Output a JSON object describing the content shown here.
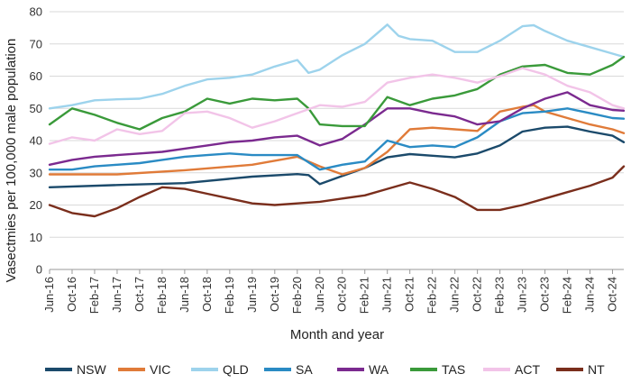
{
  "chart_data": {
    "type": "line",
    "title": "",
    "xlabel": "Month and year",
    "ylabel": "Vasectmies per 100,000 male population",
    "ylim": [
      0,
      80
    ],
    "yticks": [
      0,
      10,
      20,
      30,
      40,
      50,
      60,
      70,
      80
    ],
    "grid": "horizontal",
    "legend_position": "bottom",
    "x_start": "Jun-16",
    "x_end": "Dec-24",
    "x_tick_labels": [
      "Jun-16",
      "Oct-16",
      "Feb-17",
      "Jun-17",
      "Oct-17",
      "Feb-18",
      "Jun-18",
      "Oct-18",
      "Feb-19",
      "Jun-19",
      "Oct-19",
      "Feb-20",
      "Jun-20",
      "Oct-20",
      "Feb-21",
      "Jun-21",
      "Oct-21",
      "Feb-22",
      "Jun-22",
      "Oct-22",
      "Feb-23",
      "Jun-23",
      "Oct-23",
      "Feb-24",
      "Jun-24",
      "Oct-24"
    ],
    "series": [
      {
        "name": "NSW",
        "color": "#1b4a6b",
        "points": [
          [
            "Jun-16",
            25.5
          ],
          [
            "Jun-17",
            26.2
          ],
          [
            "Jun-18",
            26.8
          ],
          [
            "Jun-19",
            28.8
          ],
          [
            "Feb-20",
            29.6
          ],
          [
            "Apr-20",
            29.3
          ],
          [
            "Jun-20",
            26.5
          ],
          [
            "Oct-20",
            29.0
          ],
          [
            "Feb-21",
            31.5
          ],
          [
            "Jun-21",
            34.8
          ],
          [
            "Oct-21",
            35.8
          ],
          [
            "Feb-22",
            35.3
          ],
          [
            "Jun-22",
            34.8
          ],
          [
            "Oct-22",
            36.0
          ],
          [
            "Feb-23",
            38.5
          ],
          [
            "Jun-23",
            42.8
          ],
          [
            "Oct-23",
            44.0
          ],
          [
            "Feb-24",
            44.3
          ],
          [
            "Jun-24",
            42.8
          ],
          [
            "Oct-24",
            41.5
          ],
          [
            "Dec-24",
            39.5
          ]
        ]
      },
      {
        "name": "VIC",
        "color": "#e07b39",
        "points": [
          [
            "Jun-16",
            29.5
          ],
          [
            "Jun-17",
            29.5
          ],
          [
            "Jun-18",
            30.8
          ],
          [
            "Jun-19",
            32.5
          ],
          [
            "Feb-20",
            35.0
          ],
          [
            "Jun-20",
            32.0
          ],
          [
            "Oct-20",
            29.5
          ],
          [
            "Feb-21",
            31.5
          ],
          [
            "Jun-21",
            36.5
          ],
          [
            "Oct-21",
            43.5
          ],
          [
            "Feb-22",
            44.0
          ],
          [
            "Jun-22",
            43.5
          ],
          [
            "Oct-22",
            43.0
          ],
          [
            "Feb-23",
            49.0
          ],
          [
            "Jun-23",
            50.5
          ],
          [
            "Aug-23",
            51.0
          ],
          [
            "Oct-23",
            49.0
          ],
          [
            "Feb-24",
            47.0
          ],
          [
            "Jun-24",
            45.0
          ],
          [
            "Oct-24",
            43.5
          ],
          [
            "Dec-24",
            42.3
          ]
        ]
      },
      {
        "name": "QLD",
        "color": "#9dd3ec",
        "points": [
          [
            "Jun-16",
            50.0
          ],
          [
            "Oct-16",
            51.0
          ],
          [
            "Feb-17",
            52.5
          ],
          [
            "Jun-17",
            52.8
          ],
          [
            "Oct-17",
            53.0
          ],
          [
            "Feb-18",
            54.5
          ],
          [
            "Jun-18",
            57.0
          ],
          [
            "Oct-18",
            59.0
          ],
          [
            "Feb-19",
            59.5
          ],
          [
            "Jun-19",
            60.5
          ],
          [
            "Oct-19",
            63.0
          ],
          [
            "Feb-20",
            65.0
          ],
          [
            "Apr-20",
            61.0
          ],
          [
            "Jun-20",
            62.0
          ],
          [
            "Oct-20",
            66.5
          ],
          [
            "Feb-21",
            70.0
          ],
          [
            "Jun-21",
            76.0
          ],
          [
            "Aug-21",
            72.5
          ],
          [
            "Oct-21",
            71.5
          ],
          [
            "Feb-22",
            71.0
          ],
          [
            "Jun-22",
            67.5
          ],
          [
            "Oct-22",
            67.5
          ],
          [
            "Feb-23",
            71.0
          ],
          [
            "Jun-23",
            75.5
          ],
          [
            "Aug-23",
            75.8
          ],
          [
            "Oct-23",
            74.0
          ],
          [
            "Feb-24",
            71.0
          ],
          [
            "Jun-24",
            69.0
          ],
          [
            "Oct-24",
            67.0
          ],
          [
            "Dec-24",
            66.0
          ]
        ]
      },
      {
        "name": "SA",
        "color": "#2a8bc4",
        "points": [
          [
            "Jun-16",
            31.0
          ],
          [
            "Oct-16",
            31.0
          ],
          [
            "Feb-17",
            32.0
          ],
          [
            "Jun-17",
            32.5
          ],
          [
            "Oct-17",
            33.0
          ],
          [
            "Feb-18",
            34.0
          ],
          [
            "Jun-18",
            35.0
          ],
          [
            "Oct-18",
            35.5
          ],
          [
            "Feb-19",
            36.0
          ],
          [
            "Jun-19",
            35.5
          ],
          [
            "Oct-19",
            35.5
          ],
          [
            "Feb-20",
            35.5
          ],
          [
            "Jun-20",
            31.0
          ],
          [
            "Oct-20",
            32.5
          ],
          [
            "Feb-21",
            33.5
          ],
          [
            "Jun-21",
            40.0
          ],
          [
            "Oct-21",
            38.0
          ],
          [
            "Feb-22",
            38.5
          ],
          [
            "Jun-22",
            38.0
          ],
          [
            "Oct-22",
            41.0
          ],
          [
            "Feb-23",
            46.0
          ],
          [
            "Jun-23",
            48.5
          ],
          [
            "Oct-23",
            49.0
          ],
          [
            "Feb-24",
            50.0
          ],
          [
            "Jun-24",
            48.5
          ],
          [
            "Oct-24",
            47.0
          ],
          [
            "Dec-24",
            46.8
          ]
        ]
      },
      {
        "name": "WA",
        "color": "#7b2a8f",
        "points": [
          [
            "Jun-16",
            32.5
          ],
          [
            "Oct-16",
            34.0
          ],
          [
            "Feb-17",
            35.0
          ],
          [
            "Jun-17",
            35.5
          ],
          [
            "Oct-17",
            36.0
          ],
          [
            "Feb-18",
            36.5
          ],
          [
            "Jun-18",
            37.5
          ],
          [
            "Oct-18",
            38.5
          ],
          [
            "Feb-19",
            39.5
          ],
          [
            "Jun-19",
            40.0
          ],
          [
            "Oct-19",
            41.0
          ],
          [
            "Feb-20",
            41.5
          ],
          [
            "Jun-20",
            38.5
          ],
          [
            "Oct-20",
            40.5
          ],
          [
            "Feb-21",
            45.0
          ],
          [
            "Jun-21",
            50.0
          ],
          [
            "Oct-21",
            50.0
          ],
          [
            "Feb-22",
            48.5
          ],
          [
            "Jun-22",
            47.5
          ],
          [
            "Oct-22",
            45.0
          ],
          [
            "Feb-23",
            46.0
          ],
          [
            "Jun-23",
            50.0
          ],
          [
            "Oct-23",
            53.0
          ],
          [
            "Feb-24",
            55.0
          ],
          [
            "Jun-24",
            51.0
          ],
          [
            "Oct-24",
            49.5
          ],
          [
            "Dec-24",
            49.3
          ]
        ]
      },
      {
        "name": "TAS",
        "color": "#3a9a3a",
        "points": [
          [
            "Jun-16",
            45.0
          ],
          [
            "Oct-16",
            50.0
          ],
          [
            "Feb-17",
            48.0
          ],
          [
            "Jun-17",
            45.5
          ],
          [
            "Oct-17",
            43.5
          ],
          [
            "Feb-18",
            47.0
          ],
          [
            "Jun-18",
            49.0
          ],
          [
            "Oct-18",
            53.0
          ],
          [
            "Feb-19",
            51.5
          ],
          [
            "Jun-19",
            53.0
          ],
          [
            "Oct-19",
            52.5
          ],
          [
            "Feb-20",
            53.0
          ],
          [
            "Apr-20",
            50.0
          ],
          [
            "Jun-20",
            45.0
          ],
          [
            "Oct-20",
            44.5
          ],
          [
            "Feb-21",
            44.5
          ],
          [
            "Jun-21",
            53.5
          ],
          [
            "Oct-21",
            51.0
          ],
          [
            "Feb-22",
            53.0
          ],
          [
            "Jun-22",
            54.0
          ],
          [
            "Oct-22",
            56.0
          ],
          [
            "Feb-23",
            60.5
          ],
          [
            "Jun-23",
            63.0
          ],
          [
            "Oct-23",
            63.5
          ],
          [
            "Feb-24",
            61.0
          ],
          [
            "Jun-24",
            60.5
          ],
          [
            "Oct-24",
            63.5
          ],
          [
            "Dec-24",
            66.0
          ]
        ]
      },
      {
        "name": "ACT",
        "color": "#f2c4e8",
        "points": [
          [
            "Jun-16",
            39.0
          ],
          [
            "Oct-16",
            41.0
          ],
          [
            "Feb-17",
            40.0
          ],
          [
            "Jun-17",
            43.5
          ],
          [
            "Oct-17",
            42.0
          ],
          [
            "Feb-18",
            43.0
          ],
          [
            "Jun-18",
            48.5
          ],
          [
            "Oct-18",
            49.0
          ],
          [
            "Feb-19",
            47.0
          ],
          [
            "Jun-19",
            44.0
          ],
          [
            "Oct-19",
            46.0
          ],
          [
            "Feb-20",
            48.5
          ],
          [
            "Jun-20",
            51.0
          ],
          [
            "Oct-20",
            50.5
          ],
          [
            "Feb-21",
            52.0
          ],
          [
            "Jun-21",
            58.0
          ],
          [
            "Oct-21",
            59.5
          ],
          [
            "Feb-22",
            60.5
          ],
          [
            "Jun-22",
            59.5
          ],
          [
            "Oct-22",
            58.0
          ],
          [
            "Feb-23",
            60.0
          ],
          [
            "Jun-23",
            62.5
          ],
          [
            "Oct-23",
            60.5
          ],
          [
            "Feb-24",
            57.0
          ],
          [
            "Jun-24",
            55.0
          ],
          [
            "Oct-24",
            51.0
          ],
          [
            "Dec-24",
            50.0
          ]
        ]
      },
      {
        "name": "NT",
        "color": "#7a2e1c",
        "points": [
          [
            "Jun-16",
            20.0
          ],
          [
            "Oct-16",
            17.5
          ],
          [
            "Feb-17",
            16.5
          ],
          [
            "Jun-17",
            19.0
          ],
          [
            "Oct-17",
            22.5
          ],
          [
            "Feb-18",
            25.5
          ],
          [
            "Jun-18",
            25.0
          ],
          [
            "Oct-18",
            23.5
          ],
          [
            "Feb-19",
            22.0
          ],
          [
            "Jun-19",
            20.5
          ],
          [
            "Oct-19",
            20.0
          ],
          [
            "Feb-20",
            20.5
          ],
          [
            "Jun-20",
            21.0
          ],
          [
            "Oct-20",
            22.0
          ],
          [
            "Feb-21",
            23.0
          ],
          [
            "Jun-21",
            25.0
          ],
          [
            "Oct-21",
            27.0
          ],
          [
            "Feb-22",
            25.0
          ],
          [
            "Jun-22",
            22.5
          ],
          [
            "Oct-22",
            18.5
          ],
          [
            "Feb-23",
            18.5
          ],
          [
            "Jun-23",
            20.0
          ],
          [
            "Oct-23",
            22.0
          ],
          [
            "Feb-24",
            24.0
          ],
          [
            "Jun-24",
            26.0
          ],
          [
            "Oct-24",
            28.5
          ],
          [
            "Dec-24",
            32.0
          ]
        ]
      }
    ]
  }
}
